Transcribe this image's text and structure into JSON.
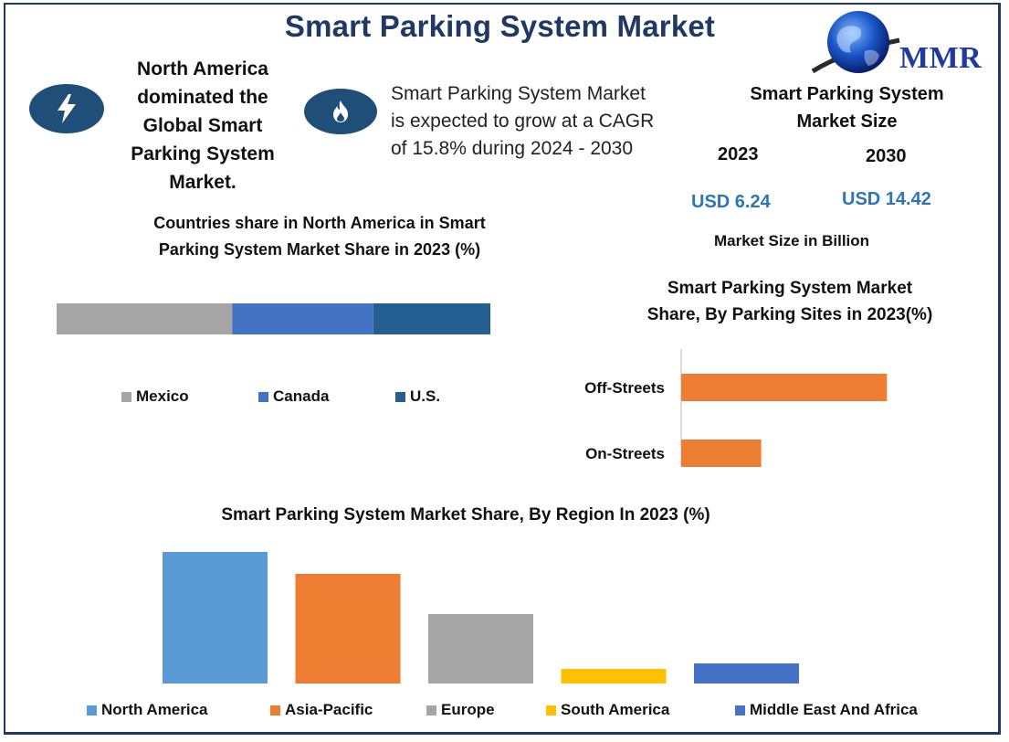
{
  "title": "Smart Parking System Market",
  "logo": {
    "text": "MMR",
    "brand_color": "#1f3aa0"
  },
  "headline": {
    "lines": [
      "North America",
      "dominated the",
      "Global Smart",
      "Parking System",
      "Market."
    ],
    "icon": "lightning-bolt-icon"
  },
  "cagr": {
    "lines": [
      "Smart Parking System Market",
      "is expected to grow at a CAGR",
      "of 15.8% during 2024 - 2030"
    ],
    "icon": "flame-icon"
  },
  "market_size": {
    "title_lines": [
      "Smart Parking System",
      "Market Size"
    ],
    "year_a": "2023",
    "year_b": "2030",
    "value_a": "USD 6.24",
    "value_b": "USD 14.42",
    "unit_label": "Market Size in Billion"
  },
  "colors": {
    "title": "#1f3864",
    "badge": "#1f4e79",
    "value_text": "#2e75b6"
  },
  "chart_data": [
    {
      "id": "countries",
      "type": "bar",
      "orientation": "stacked-horizontal",
      "title_lines": [
        "Countries share in North America in Smart",
        "Parking System Market Share in 2023 (%)"
      ],
      "series": [
        {
          "name": "Mexico",
          "value": 40.5,
          "color": "#a5a5a5"
        },
        {
          "name": "Canada",
          "value": 32.5,
          "color": "#4472c4"
        },
        {
          "name": "U.S.",
          "value": 27.0,
          "color": "#255e91"
        }
      ],
      "xlim": [
        0,
        100
      ],
      "legend": "bottom",
      "grid": false
    },
    {
      "id": "parking_sites",
      "type": "bar",
      "orientation": "horizontal",
      "title_lines": [
        "Smart Parking System Market",
        "Share, By Parking Sites in 2023(%)"
      ],
      "categories": [
        "Off-Streets",
        "On-Streets"
      ],
      "values": [
        72,
        28
      ],
      "xlim": [
        0,
        100
      ],
      "color": "#ed7d31",
      "grid": false
    },
    {
      "id": "region",
      "type": "bar",
      "title": "Smart Parking System Market Share, By Region In 2023 (%)",
      "categories": [
        "North America",
        "Asia-Pacific",
        "Europe",
        "South America",
        "Middle East And Africa"
      ],
      "values": [
        36,
        30,
        19,
        4,
        5.5
      ],
      "colors": [
        "#5b9bd5",
        "#ed7d31",
        "#a5a5a5",
        "#ffc000",
        "#4472c4"
      ],
      "ylim": [
        0,
        36
      ],
      "legend": "bottom",
      "grid": false
    }
  ]
}
